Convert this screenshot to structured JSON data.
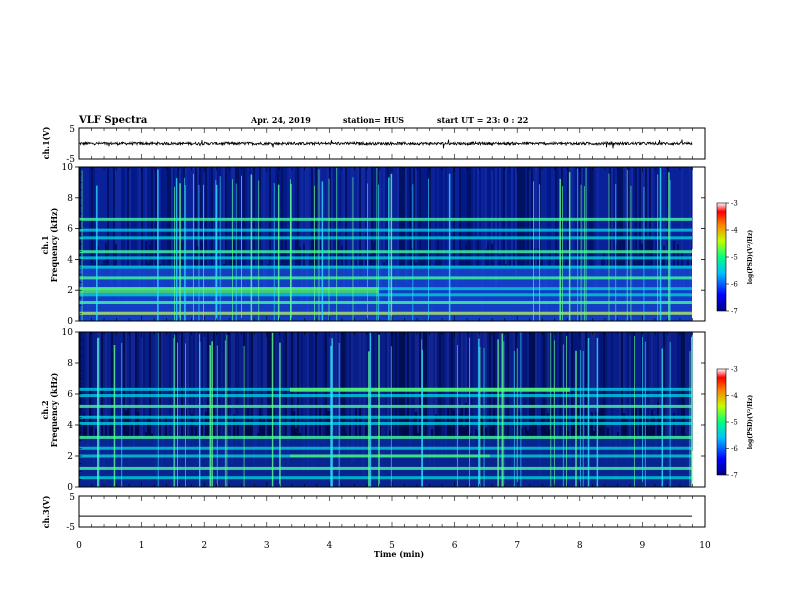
{
  "header": {
    "title": "VLF Spectra",
    "date": "Apr. 24, 2019",
    "station": "station= HUS",
    "start": "start  UT  =   23: 0  : 22"
  },
  "colors": {
    "bg": "#000040",
    "spectrum_low": "#0a1a8a",
    "spectrum_mid": "#00c8c8",
    "spectrum_high": "#60ff60"
  },
  "chart_data": [
    {
      "type": "line",
      "panel": "ch1-waveform",
      "ylabel": "ch.1(V)",
      "ylim": [
        -5,
        5
      ],
      "yticks": [
        "5",
        "-5"
      ],
      "series": [
        {
          "values_summary": "noisy trace near 0 V"
        }
      ]
    },
    {
      "type": "heatmap",
      "panel": "ch1-spectrogram",
      "ylabel": "ch.1\nFrequency  (kHz)",
      "ylabel_line1": "ch.1",
      "ylabel_line2": "Frequency  (kHz)",
      "ylim": [
        0,
        10
      ],
      "yticks": [
        "0",
        "2",
        "4",
        "6",
        "8",
        "10"
      ],
      "bands_khz": [
        0.5,
        1.2,
        1.7,
        2.1,
        2.8,
        3.5,
        4.1,
        4.5,
        5.4,
        5.9,
        6.6
      ],
      "colorbar": {
        "label": "log(PSD)(V²/Hz)",
        "ticks": [
          "-3",
          "-4",
          "-5",
          "-6",
          "-7"
        ]
      }
    },
    {
      "type": "heatmap",
      "panel": "ch2-spectrogram",
      "ylabel_line1": "ch.2",
      "ylabel_line2": "Frequency  (kHz)",
      "ylim": [
        0,
        10
      ],
      "yticks": [
        "0",
        "2",
        "4",
        "6",
        "8",
        "10"
      ],
      "bands_khz": [
        0.6,
        1.2,
        2.0,
        2.5,
        3.2,
        4.1,
        4.5,
        5.2,
        5.9,
        6.3
      ],
      "colorbar": {
        "label": "log(PSD)(V²/Hz)",
        "ticks": [
          "-3",
          "-4",
          "-5",
          "-6",
          "-7"
        ]
      }
    },
    {
      "type": "line",
      "panel": "ch3-waveform",
      "ylabel": "ch.3(V)",
      "ylim": [
        -5,
        5
      ],
      "yticks": [
        "5",
        "-5"
      ],
      "series": [
        {
          "values_summary": "flat line at about -1.5 V"
        }
      ]
    }
  ],
  "xaxis": {
    "label": "Time  (min)",
    "xlim": [
      0,
      10
    ],
    "ticks": [
      "0",
      "1",
      "2",
      "3",
      "4",
      "5",
      "6",
      "7",
      "8",
      "9",
      "10"
    ]
  }
}
